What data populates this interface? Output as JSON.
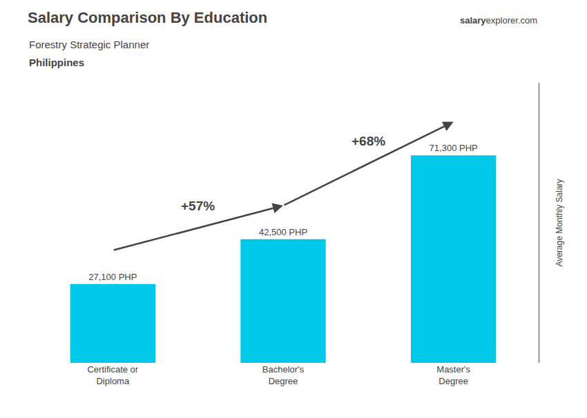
{
  "chart_data": {
    "type": "bar",
    "title": "Salary Comparison By Education",
    "subtitle": "Forestry Strategic Planner",
    "country": "Philippines",
    "watermark": [
      "salary",
      "explorer.com"
    ],
    "ylabel": "Average Monthly Salary",
    "categories": [
      "Certificate or\nDiploma",
      "Bachelor's\nDegree",
      "Master's\nDegree"
    ],
    "values": [
      27100,
      42500,
      71300
    ],
    "value_labels": [
      "27,100 PHP",
      "42,500 PHP",
      "71,300 PHP"
    ],
    "data_labels": true,
    "growth_labels": [
      "+57%",
      "+68%"
    ],
    "color": "#00c8e8",
    "ylim": [
      0,
      96255
    ],
    "yticks": [],
    "tick_labels": "x",
    "grid": false
  }
}
